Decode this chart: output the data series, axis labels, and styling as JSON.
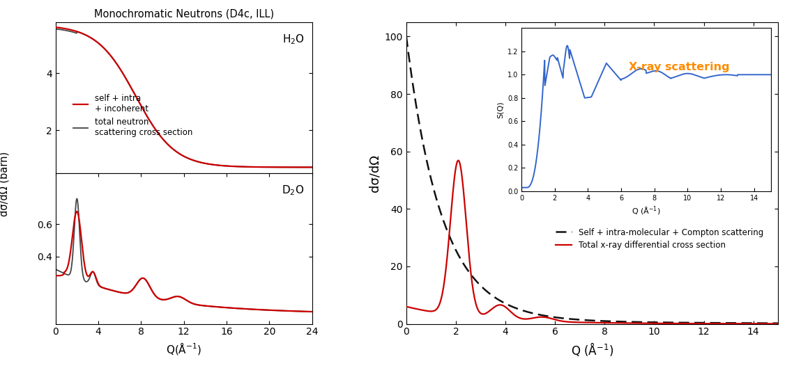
{
  "title_left": "Monochromatic Neutrons (D4c, ILL)",
  "xlabel_left": "Q(Å$^{-1}$)",
  "xlabel_right": "Q (Å$^{-1}$)",
  "xlabel_inset": "Q (Å$^{-1}$)",
  "ylabel_left": "dσ/dΩ (barn)",
  "ylabel_right": "dσ/dΩ",
  "ylabel_inset": "S(Q)",
  "legend_red_label": "self + intra\n+ incoherent",
  "legend_black_label": "total neutron\nscattering cross section",
  "legend_dashed_label": "Self + intra-molecular + Compton scattering",
  "legend_red2_label": "Total x-ray differential cross section",
  "inset_title": "X-ray scattering",
  "inset_title_color": "#FF8C00",
  "line_red": "#CC0000",
  "line_black": "#444444",
  "line_blue": "#3366CC",
  "line_dashed": "#111111"
}
